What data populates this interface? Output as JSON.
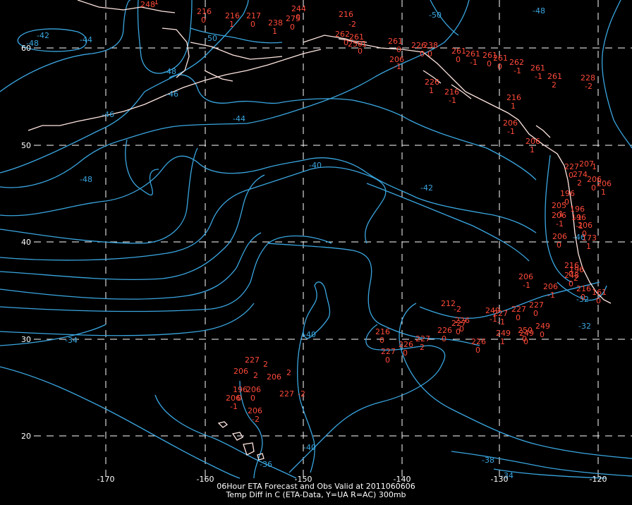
{
  "colors": {
    "background": "#000000",
    "contour": "#3aa6e0",
    "station": "#ff4a3a",
    "grid": "#ffffff",
    "coast": "#ffe6e0"
  },
  "caption": {
    "line1": "06Hour ETA Forecast and Obs Valid at 2011060606",
    "line2": "Temp Diff in C (ETA-Data, Y=UA R=AC) 300mb"
  },
  "lon_labels": [
    "-170",
    "-160",
    "-150",
    "-140",
    "-130",
    "-120"
  ],
  "lat_labels": [
    "60",
    "50",
    "40",
    "30",
    "20"
  ],
  "contour_labels": [
    "-42",
    "-44",
    "-48",
    "-46",
    "-48",
    "-46",
    "-44",
    "-50",
    "-48",
    "-50",
    "-40",
    "-42",
    "-48",
    "-40",
    "-40",
    "-34",
    "-36",
    "-38",
    "-34",
    "-32",
    "-32",
    "-46"
  ],
  "stations": [
    {
      "name": "248",
      "value": "1"
    },
    {
      "name": "216",
      "value": "0"
    },
    {
      "name": "216",
      "value": "1"
    },
    {
      "name": "217",
      "value": "0"
    },
    {
      "name": "238",
      "value": "1"
    },
    {
      "name": "275",
      "value": "0"
    },
    {
      "name": "244",
      "value": "0"
    },
    {
      "name": "216",
      "value": "-2"
    },
    {
      "name": "262",
      "value": "0"
    },
    {
      "name": "261",
      "value": "-1"
    },
    {
      "name": "250",
      "value": "0"
    },
    {
      "name": "261",
      "value": "0"
    },
    {
      "name": "226",
      "value": "0"
    },
    {
      "name": "238",
      "value": "0"
    },
    {
      "name": "206",
      "value": "-1"
    },
    {
      "name": "261",
      "value": "0"
    },
    {
      "name": "261",
      "value": "-1"
    },
    {
      "name": "261",
      "value": "0"
    },
    {
      "name": "261",
      "value": "0"
    },
    {
      "name": "262",
      "value": "-1"
    },
    {
      "name": "261",
      "value": "-1"
    },
    {
      "name": "261",
      "value": "2"
    },
    {
      "name": "228",
      "value": "-2"
    },
    {
      "name": "226",
      "value": "1"
    },
    {
      "name": "216",
      "value": "-1"
    },
    {
      "name": "216",
      "value": "1"
    },
    {
      "name": "206",
      "value": "-1"
    },
    {
      "name": "206",
      "value": "1"
    },
    {
      "name": "227",
      "value": "0"
    },
    {
      "name": "207",
      "value": "1"
    },
    {
      "name": "274",
      "value": "2"
    },
    {
      "name": "206",
      "value": "0"
    },
    {
      "name": "206",
      "value": "1"
    },
    {
      "name": "196",
      "value": "0"
    },
    {
      "name": "205",
      "value": "-1"
    },
    {
      "name": "196",
      "value": "-1"
    },
    {
      "name": "206",
      "value": "-1"
    },
    {
      "name": "196",
      "value": "-1"
    },
    {
      "name": "206",
      "value": "0"
    },
    {
      "name": "173",
      "value": "1"
    },
    {
      "name": "206",
      "value": "0"
    },
    {
      "name": "216",
      "value": "0"
    },
    {
      "name": "206",
      "value": "-1"
    },
    {
      "name": "196",
      "value": "2"
    },
    {
      "name": "206",
      "value": "-1"
    },
    {
      "name": "248",
      "value": "0"
    },
    {
      "name": "216",
      "value": "0"
    },
    {
      "name": "161",
      "value": "0"
    },
    {
      "name": "212",
      "value": "-2"
    },
    {
      "name": "226",
      "value": "0"
    },
    {
      "name": "227",
      "value": "-1"
    },
    {
      "name": "227",
      "value": "0"
    },
    {
      "name": "227",
      "value": "0"
    },
    {
      "name": "226",
      "value": "0"
    },
    {
      "name": "249",
      "value": "-1"
    },
    {
      "name": "249",
      "value": "0"
    },
    {
      "name": "226",
      "value": "0"
    },
    {
      "name": "227",
      "value": "0"
    },
    {
      "name": "249",
      "value": "1"
    },
    {
      "name": "250",
      "value": "0"
    },
    {
      "name": "249",
      "value": "0"
    },
    {
      "name": "216",
      "value": "0"
    },
    {
      "name": "227",
      "value": "0"
    },
    {
      "name": "226",
      "value": "0"
    },
    {
      "name": "227",
      "value": "2"
    },
    {
      "name": "227",
      "value": "2"
    },
    {
      "name": "206",
      "value": "2"
    },
    {
      "name": "206",
      "value": "2"
    },
    {
      "name": "196",
      "value": "0"
    },
    {
      "name": "206",
      "value": "0"
    },
    {
      "name": "206",
      "value": "-1"
    },
    {
      "name": "206",
      "value": "-2"
    },
    {
      "name": "227",
      "value": "-2"
    }
  ]
}
